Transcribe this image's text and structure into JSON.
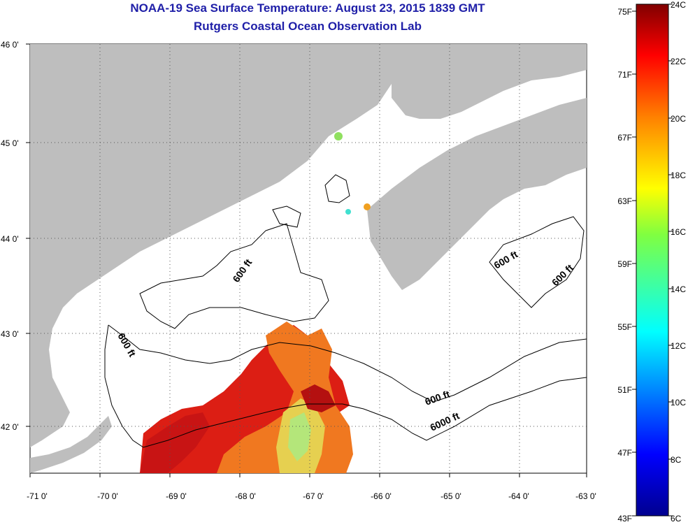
{
  "title": "NOAA-19 Sea Surface Temperature:  August 23, 2015 1839 GMT",
  "subtitle": "Rutgers Coastal Ocean Observation Lab",
  "lat_labels": [
    "46 0'",
    "45 0'",
    "44 0'",
    "43 0'",
    "42 0'"
  ],
  "lon_labels": [
    "-71 0'",
    "-70 0'",
    "-69 0'",
    "-68 0'",
    "-67 0'",
    "-66 0'",
    "-65 0'",
    "-64 0'",
    "-63 0'"
  ],
  "contour_labels": [
    "600 ft",
    "600 ft",
    "600 ft",
    "600 ft",
    "600 ft",
    "6000 ft"
  ],
  "colorbar": {
    "fahrenheit": [
      "75F",
      "71F",
      "67F",
      "63F",
      "59F",
      "55F",
      "51F",
      "47F",
      "43F"
    ],
    "celsius": [
      "24C",
      "22C",
      "20C",
      "18C",
      "16C",
      "14C",
      "12C",
      "10C",
      "8C",
      "6C"
    ]
  },
  "colors": {
    "title": "#1f1fa8",
    "land": "#bebebe",
    "ocean": "#ffffff"
  }
}
